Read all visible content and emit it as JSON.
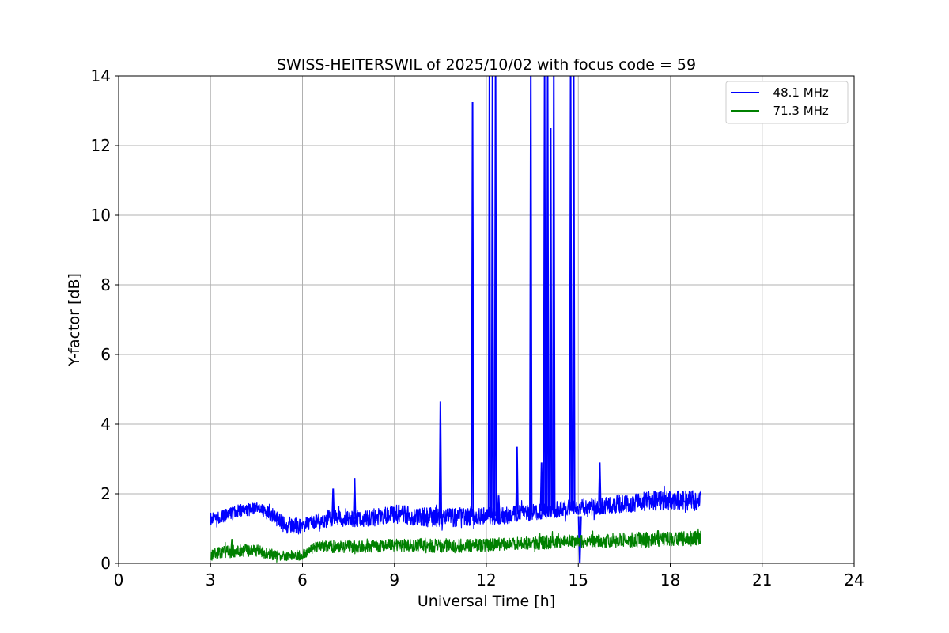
{
  "chart_data": {
    "type": "line",
    "title": "SWISS-HEITERSWIL of 2025/10/02 with focus code = 59",
    "xlabel": "Universal Time [h]",
    "ylabel": "Y-factor [dB]",
    "xlim": [
      0,
      24
    ],
    "ylim": [
      0,
      14
    ],
    "xticks": [
      0,
      3,
      6,
      9,
      12,
      15,
      18,
      21,
      24
    ],
    "yticks": [
      0,
      2,
      4,
      6,
      8,
      10,
      12,
      14
    ],
    "xtick_labels": [
      "0",
      "3",
      "6",
      "9",
      "12",
      "15",
      "18",
      "21",
      "24"
    ],
    "ytick_labels": [
      "0",
      "2",
      "4",
      "6",
      "8",
      "10",
      "12",
      "14"
    ],
    "grid": true,
    "legend_position": "top-right",
    "series": [
      {
        "name": "48.1 MHz",
        "label": "  48.1 MHz",
        "color": "#0000ff",
        "x_range": [
          3.0,
          19.0
        ],
        "band": [
          [
            3.0,
            1.1,
            1.45
          ],
          [
            3.5,
            1.2,
            1.6
          ],
          [
            4.0,
            1.3,
            1.7
          ],
          [
            4.5,
            1.4,
            1.75
          ],
          [
            5.0,
            1.2,
            1.6
          ],
          [
            5.5,
            0.8,
            1.3
          ],
          [
            6.0,
            0.85,
            1.3
          ],
          [
            6.5,
            1.0,
            1.45
          ],
          [
            7.0,
            1.05,
            1.5
          ],
          [
            8.0,
            1.05,
            1.5
          ],
          [
            9.0,
            1.15,
            1.7
          ],
          [
            10.0,
            1.05,
            1.6
          ],
          [
            11.0,
            1.05,
            1.6
          ],
          [
            12.0,
            1.1,
            1.6
          ],
          [
            13.0,
            1.15,
            1.65
          ],
          [
            14.0,
            1.3,
            1.75
          ],
          [
            15.0,
            1.35,
            1.85
          ],
          [
            16.0,
            1.4,
            1.9
          ],
          [
            17.0,
            1.5,
            2.05
          ],
          [
            18.0,
            1.5,
            2.1
          ],
          [
            19.0,
            1.5,
            2.1
          ]
        ],
        "spikes": [
          [
            7.0,
            2.15
          ],
          [
            7.7,
            2.45
          ],
          [
            10.5,
            4.65
          ],
          [
            11.55,
            13.25
          ],
          [
            12.1,
            14
          ],
          [
            12.2,
            14
          ],
          [
            12.3,
            14
          ],
          [
            12.4,
            1.95
          ],
          [
            13.0,
            3.35
          ],
          [
            13.45,
            14
          ],
          [
            13.8,
            2.9
          ],
          [
            13.9,
            14
          ],
          [
            14.0,
            14
          ],
          [
            14.1,
            12.5
          ],
          [
            14.2,
            14
          ],
          [
            14.75,
            14
          ],
          [
            14.85,
            14
          ],
          [
            15.7,
            2.9
          ]
        ],
        "dips": [
          [
            15.05,
            0.0
          ]
        ]
      },
      {
        "name": "71.3 MHz",
        "label": "  71.3 MHz",
        "color": "#008000",
        "x_range": [
          3.0,
          19.0
        ],
        "band": [
          [
            3.0,
            0.1,
            0.45
          ],
          [
            4.0,
            0.2,
            0.55
          ],
          [
            4.5,
            0.2,
            0.55
          ],
          [
            5.0,
            0.1,
            0.4
          ],
          [
            5.5,
            0.05,
            0.35
          ],
          [
            6.0,
            0.1,
            0.4
          ],
          [
            6.5,
            0.35,
            0.65
          ],
          [
            7.0,
            0.3,
            0.65
          ],
          [
            8.0,
            0.3,
            0.65
          ],
          [
            9.0,
            0.35,
            0.7
          ],
          [
            10.0,
            0.3,
            0.7
          ],
          [
            11.0,
            0.3,
            0.7
          ],
          [
            12.0,
            0.35,
            0.7
          ],
          [
            13.0,
            0.4,
            0.75
          ],
          [
            14.0,
            0.4,
            0.8
          ],
          [
            15.0,
            0.45,
            0.8
          ],
          [
            16.0,
            0.45,
            0.85
          ],
          [
            17.0,
            0.45,
            0.9
          ],
          [
            18.0,
            0.5,
            0.9
          ],
          [
            19.0,
            0.5,
            0.95
          ]
        ],
        "spikes": [
          [
            3.7,
            0.7
          ],
          [
            17.6,
            0.95
          ],
          [
            18.9,
            1.0
          ]
        ],
        "dips": []
      }
    ]
  }
}
